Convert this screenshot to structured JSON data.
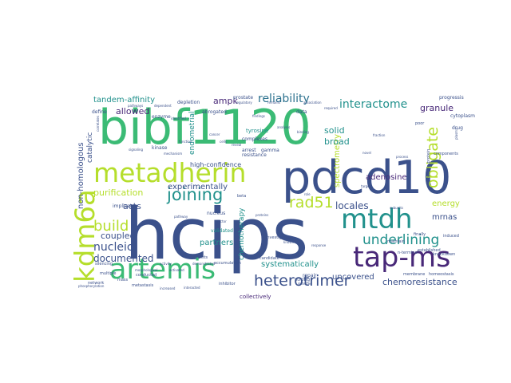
{
  "palette": {
    "navy": "#3b518b",
    "blue": "#2c718e",
    "teal": "#21918c",
    "green": "#3bbb75",
    "lime": "#5ec962",
    "yellow": "#b5de2b",
    "purple": "#482878",
    "dark": "#440154"
  },
  "words": [
    {
      "text": "hcips",
      "color": "navy"
    },
    {
      "text": "bibf1120",
      "color": "green"
    },
    {
      "text": "pdcd10",
      "color": "navy"
    },
    {
      "text": "metadherin",
      "color": "yellow"
    },
    {
      "text": "mtdh",
      "color": "teal"
    },
    {
      "text": "artemis",
      "color": "green"
    },
    {
      "text": "tap-ms",
      "color": "purple"
    },
    {
      "text": "kdm6a",
      "color": "yellow"
    },
    {
      "text": "heterotrimer",
      "color": "navy"
    },
    {
      "text": "joining",
      "color": "teal"
    },
    {
      "text": "rad51",
      "color": "yellow"
    },
    {
      "text": "underlining",
      "color": "teal"
    },
    {
      "text": "obligate",
      "color": "yellow"
    },
    {
      "text": "reliability",
      "color": "blue"
    },
    {
      "text": "interactome",
      "color": "teal"
    },
    {
      "text": "build",
      "color": "yellow"
    },
    {
      "text": "nucleic",
      "color": "navy"
    },
    {
      "text": "documented",
      "color": "navy"
    },
    {
      "text": "coupled",
      "color": "navy"
    },
    {
      "text": "purification",
      "color": "yellow"
    },
    {
      "text": "acts",
      "color": "navy"
    },
    {
      "text": "allowed",
      "color": "purple"
    },
    {
      "text": "tandem-affinity",
      "color": "teal"
    },
    {
      "text": "non-homologous",
      "color": "navy"
    },
    {
      "text": "catalytic",
      "color": "navy"
    },
    {
      "text": "ampk",
      "color": "purple"
    },
    {
      "text": "endometrial",
      "color": "teal"
    },
    {
      "text": "experimentally",
      "color": "navy"
    },
    {
      "text": "partners",
      "color": "teal"
    },
    {
      "text": "chemotherapy",
      "color": "teal"
    },
    {
      "text": "systematically",
      "color": "teal"
    },
    {
      "text": "chemoresistance",
      "color": "navy"
    },
    {
      "text": "spectrometry",
      "color": "yellow"
    },
    {
      "text": "solid",
      "color": "teal"
    },
    {
      "text": "broad",
      "color": "teal"
    },
    {
      "text": "granule",
      "color": "purple"
    },
    {
      "text": "adenosine",
      "color": "purple"
    },
    {
      "text": "locales",
      "color": "navy"
    },
    {
      "text": "energy",
      "color": "yellow"
    },
    {
      "text": "mrnas",
      "color": "navy"
    },
    {
      "text": "uncovered",
      "color": "navy"
    },
    {
      "text": "high-confidence",
      "color": "navy"
    },
    {
      "text": "collectively",
      "color": "purple"
    },
    {
      "text": "tyrosine",
      "color": "teal"
    },
    {
      "text": "complexes",
      "color": "navy"
    },
    {
      "text": "depletion",
      "color": "navy"
    },
    {
      "text": "abrogated",
      "color": "navy"
    },
    {
      "text": "prostate",
      "color": "navy"
    },
    {
      "text": "enzyme",
      "color": "navy"
    },
    {
      "text": "kinase",
      "color": "navy"
    },
    {
      "text": "define",
      "color": "navy"
    },
    {
      "text": "implicate",
      "color": "navy"
    },
    {
      "text": "validated",
      "color": "teal"
    },
    {
      "text": "nucleus",
      "color": "navy"
    },
    {
      "text": "arrest",
      "color": "navy"
    },
    {
      "text": "resistance",
      "color": "navy"
    },
    {
      "text": "gamma",
      "color": "navy"
    },
    {
      "text": "data",
      "color": "navy"
    },
    {
      "text": "drug",
      "color": "navy"
    },
    {
      "text": "poor",
      "color": "navy"
    },
    {
      "text": "cytoplasm",
      "color": "navy"
    },
    {
      "text": "progressis",
      "color": "navy"
    },
    {
      "text": "components",
      "color": "navy"
    },
    {
      "text": "repair",
      "color": "navy"
    },
    {
      "text": "strong",
      "color": "navy"
    },
    {
      "text": "investigation",
      "color": "navy"
    },
    {
      "text": "candidate",
      "color": "navy"
    },
    {
      "text": "consists",
      "color": "navy"
    },
    {
      "text": "accumulation",
      "color": "navy"
    },
    {
      "text": "inhibitor",
      "color": "navy"
    },
    {
      "text": "metastasis",
      "color": "navy"
    },
    {
      "text": "multiple",
      "color": "navy"
    },
    {
      "text": "network",
      "color": "navy"
    },
    {
      "text": "conducted",
      "color": "navy"
    },
    {
      "text": "mass",
      "color": "navy"
    },
    {
      "text": "silencing",
      "color": "navy"
    },
    {
      "text": "n-terminal",
      "color": "navy"
    },
    {
      "text": "established",
      "color": "navy"
    },
    {
      "text": "homeostasis",
      "color": "navy"
    },
    {
      "text": "membrane",
      "color": "navy"
    },
    {
      "text": "knockdown",
      "color": "navy"
    },
    {
      "text": "maintain",
      "color": "navy"
    },
    {
      "text": "finally",
      "color": "navy"
    },
    {
      "text": "protein-protein",
      "color": "navy"
    },
    {
      "text": "induced",
      "color": "navy"
    },
    {
      "text": "beta",
      "color": "navy"
    },
    {
      "text": "pathways",
      "color": "navy"
    },
    {
      "text": "dependent",
      "color": "navy"
    },
    {
      "text": "regulatory",
      "color": "navy"
    },
    {
      "text": "remains",
      "color": "navy"
    },
    {
      "text": "association",
      "color": "navy"
    },
    {
      "text": "required",
      "color": "navy"
    },
    {
      "text": "findings",
      "color": "navy"
    },
    {
      "text": "binding",
      "color": "navy"
    },
    {
      "text": "process",
      "color": "navy"
    },
    {
      "text": "subunits",
      "color": "navy"
    },
    {
      "text": "response",
      "color": "navy"
    },
    {
      "text": "increased",
      "color": "navy"
    },
    {
      "text": "identified",
      "color": "navy"
    },
    {
      "text": "detected",
      "color": "navy"
    },
    {
      "text": "demonstrated",
      "color": "navy"
    },
    {
      "text": "interacted",
      "color": "navy"
    },
    {
      "text": "novel",
      "color": "navy"
    },
    {
      "text": "correlates",
      "color": "navy"
    },
    {
      "text": "mechanism",
      "color": "navy"
    },
    {
      "text": "phosphorylation",
      "color": "navy"
    },
    {
      "text": "morphological",
      "color": "navy"
    },
    {
      "text": "activated",
      "color": "navy"
    },
    {
      "text": "cancer",
      "color": "navy"
    },
    {
      "text": "cells",
      "color": "navy"
    },
    {
      "text": "reveal",
      "color": "navy"
    },
    {
      "text": "plasma",
      "color": "navy"
    },
    {
      "text": "activity",
      "color": "navy"
    },
    {
      "text": "fraction",
      "color": "navy"
    },
    {
      "text": "analysis",
      "color": "navy"
    },
    {
      "text": "proteins",
      "color": "navy"
    },
    {
      "text": "role",
      "color": "navy"
    },
    {
      "text": "known",
      "color": "navy"
    },
    {
      "text": "targets",
      "color": "navy"
    },
    {
      "text": "pathway",
      "color": "navy"
    },
    {
      "text": "signaling",
      "color": "navy"
    },
    {
      "text": "function",
      "color": "navy"
    },
    {
      "text": "factor",
      "color": "navy"
    }
  ]
}
